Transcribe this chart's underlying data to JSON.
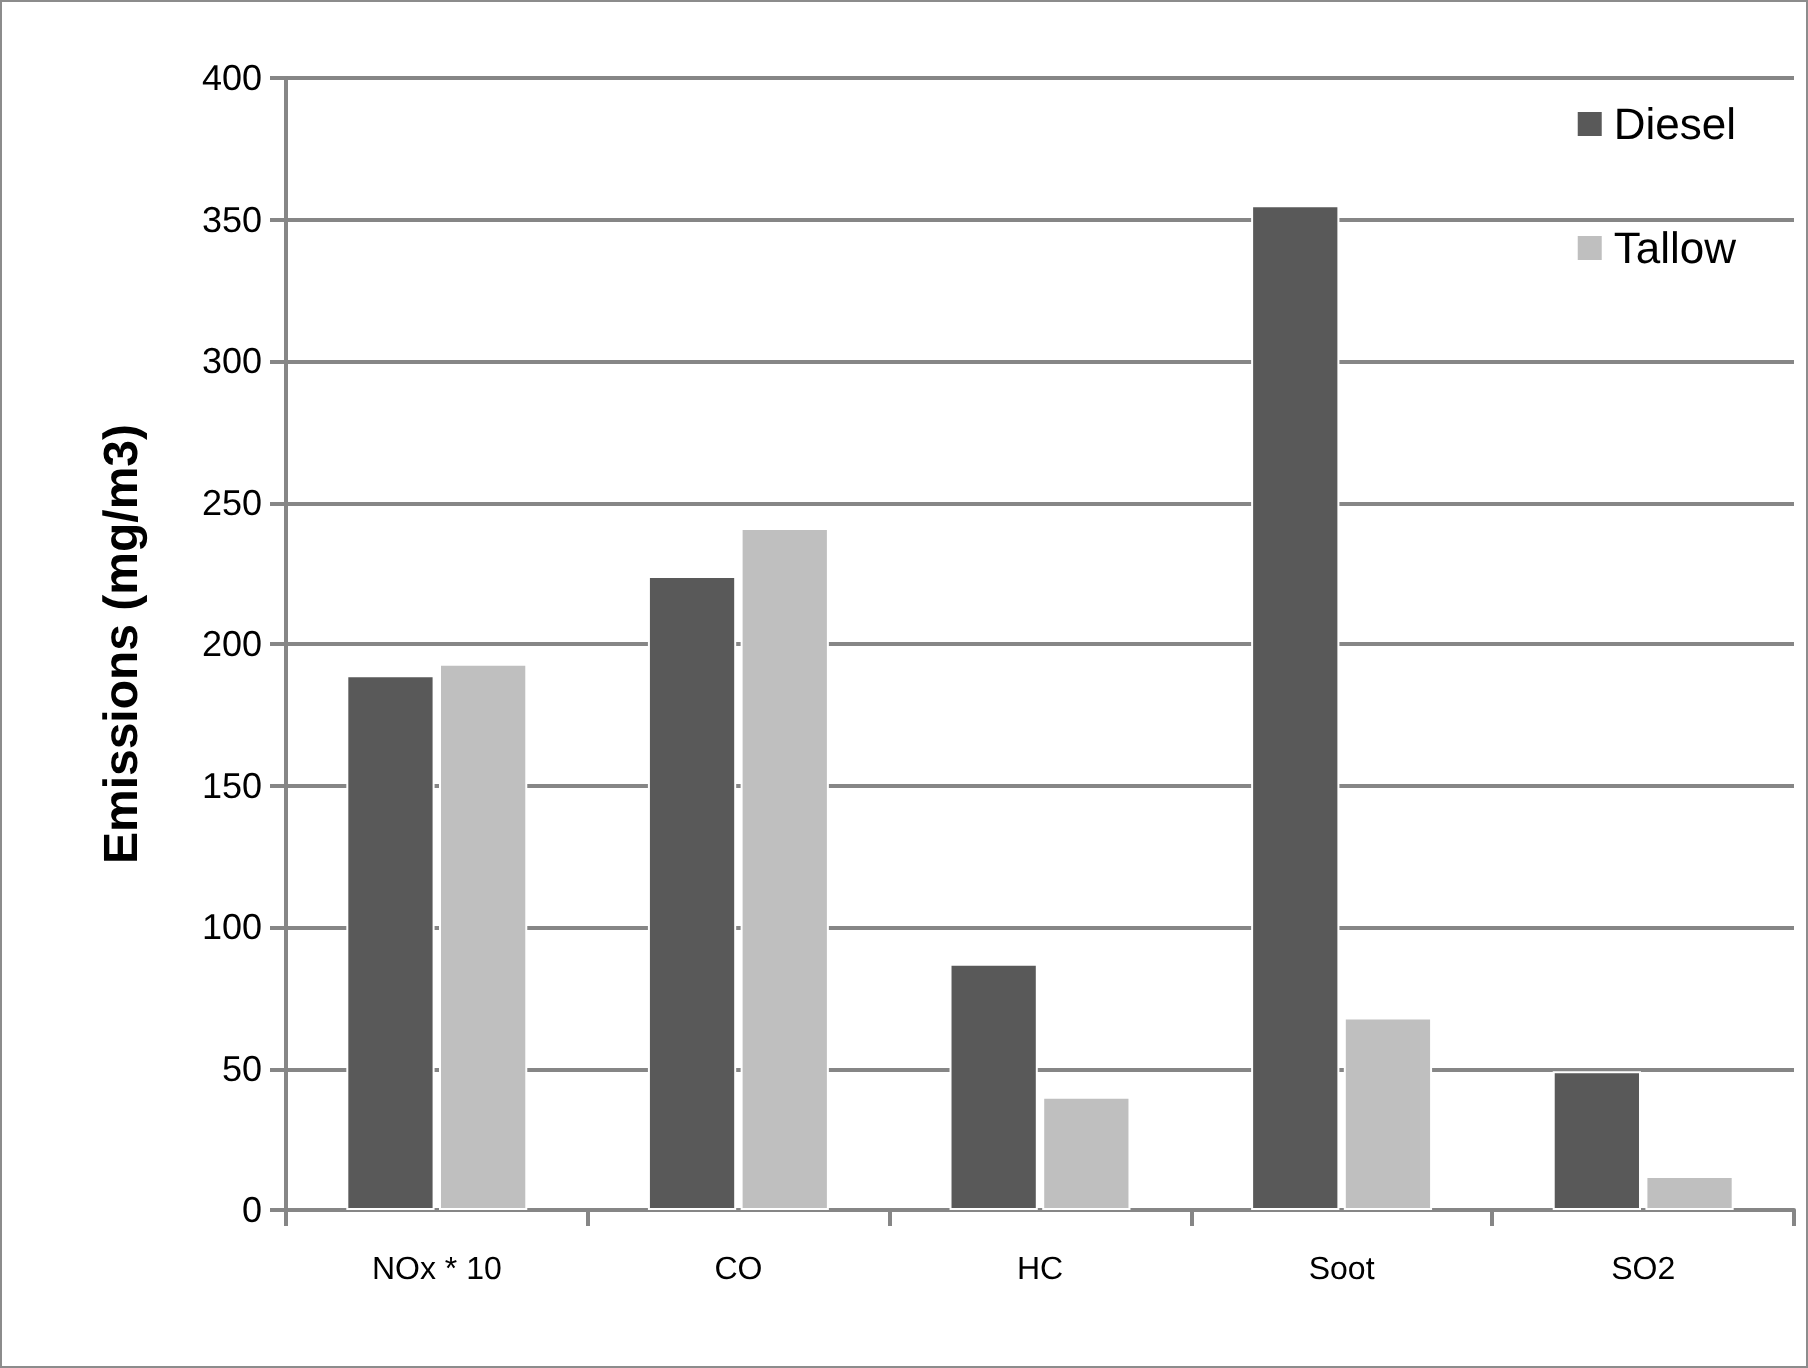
{
  "chart_data": {
    "type": "bar",
    "ylabel": "Emissions (mg/m3)",
    "categories": [
      "NOx * 10",
      "CO",
      "HC",
      "Soot",
      "SO2"
    ],
    "series": [
      {
        "name": "Diesel",
        "color": "#595959",
        "values": [
          189,
          224,
          87,
          355,
          49
        ]
      },
      {
        "name": "Tallow",
        "color": "#bfbfbf",
        "values": [
          193,
          241,
          40,
          68,
          12
        ]
      }
    ],
    "ylim": [
      0,
      400
    ],
    "yticks": [
      0,
      50,
      100,
      150,
      200,
      250,
      300,
      350,
      400
    ],
    "grid": "y",
    "legend": "top right"
  }
}
